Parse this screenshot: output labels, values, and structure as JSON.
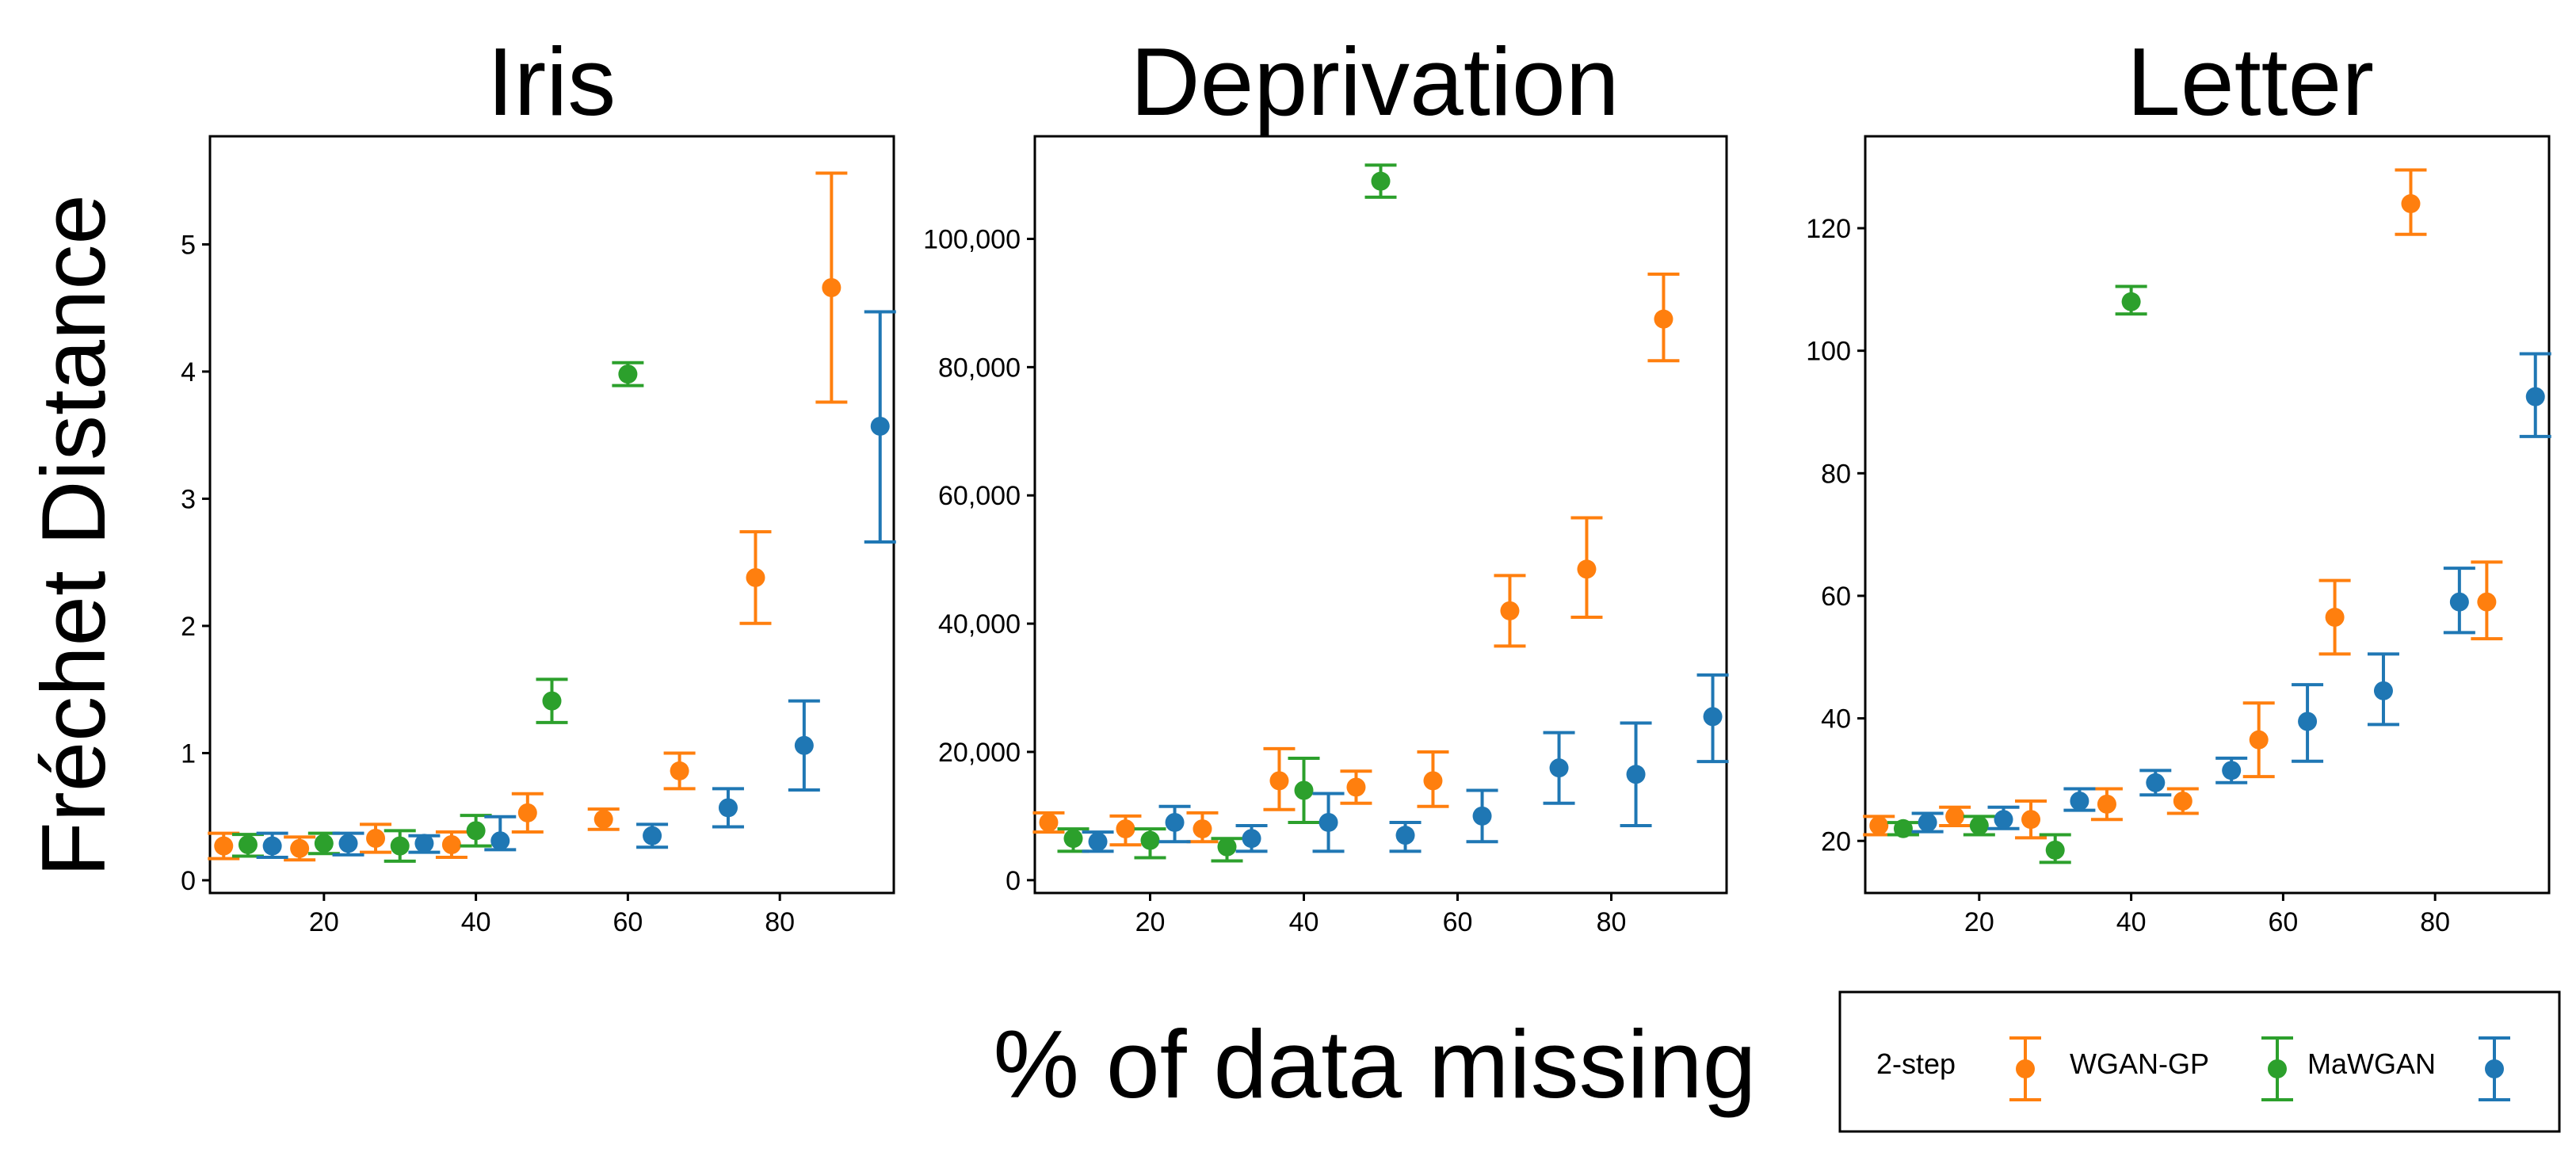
{
  "figure": {
    "ylabel": "Fréchet Distance",
    "xlabel": "% of data missing"
  },
  "legend": {
    "items": [
      {
        "label": "2-step",
        "color": "#ff7f0e"
      },
      {
        "label": "WGAN-GP",
        "color": "#2ca02c"
      },
      {
        "label": "MaWGAN",
        "color": "#1f77b4"
      }
    ]
  },
  "chart_data": [
    {
      "type": "scatter",
      "title": "Iris",
      "xlim": [
        5,
        95
      ],
      "ylim": [
        -0.1,
        5.85
      ],
      "xticks": [
        20,
        40,
        60,
        80
      ],
      "xtick_labels": [
        "20",
        "40",
        "60",
        "80"
      ],
      "yticks": [
        0,
        1,
        2,
        3,
        4,
        5
      ],
      "ytick_labels": [
        "0",
        "1",
        "2",
        "3",
        "4",
        "5"
      ],
      "grid": false,
      "series": [
        {
          "name": "2-step",
          "color": "#ff7f0e",
          "x": [
            10,
            20,
            30,
            40,
            50,
            60,
            70,
            80,
            90
          ],
          "y": [
            0.27,
            0.25,
            0.33,
            0.28,
            0.53,
            0.48,
            0.86,
            2.38,
            4.66
          ],
          "err_low": [
            0.17,
            0.16,
            0.22,
            0.18,
            0.38,
            0.4,
            0.72,
            2.02,
            3.76
          ],
          "err_high": [
            0.37,
            0.34,
            0.44,
            0.38,
            0.68,
            0.56,
            1.0,
            2.74,
            5.56
          ]
        },
        {
          "name": "WGAN-GP",
          "color": "#2ca02c",
          "x": [
            10,
            20,
            30,
            40,
            50,
            60
          ],
          "y": [
            0.28,
            0.29,
            0.27,
            0.39,
            1.41,
            3.98
          ],
          "err_low": [
            0.19,
            0.21,
            0.15,
            0.27,
            1.24,
            3.89
          ],
          "err_high": [
            0.36,
            0.37,
            0.39,
            0.51,
            1.58,
            4.07
          ]
        },
        {
          "name": "MaWGAN",
          "color": "#1f77b4",
          "x": [
            10,
            20,
            30,
            40,
            50,
            60,
            70,
            80,
            90
          ],
          "y": [
            0.27,
            0.29,
            0.29,
            0.31,
            null,
            0.35,
            0.57,
            1.06,
            3.57
          ],
          "err_low": [
            0.18,
            0.2,
            0.22,
            0.24,
            null,
            0.26,
            0.42,
            0.71,
            2.66
          ],
          "err_high": [
            0.37,
            0.37,
            0.35,
            0.5,
            null,
            0.44,
            0.72,
            1.41,
            4.47
          ]
        }
      ]
    },
    {
      "type": "scatter",
      "title": "Deprivation",
      "xlim": [
        5,
        95
      ],
      "ylim": [
        -2000,
        116000
      ],
      "xticks": [
        20,
        40,
        60,
        80
      ],
      "xtick_labels": [
        "20",
        "40",
        "60",
        "80"
      ],
      "yticks": [
        0,
        20000,
        40000,
        60000,
        80000,
        100000
      ],
      "ytick_labels": [
        "0",
        "20,000",
        "40,000",
        "60,000",
        "80,000",
        "100,000"
      ],
      "grid": false,
      "series": [
        {
          "name": "2-step",
          "color": "#ff7f0e",
          "x": [
            10,
            20,
            30,
            40,
            50,
            60,
            70,
            80,
            90
          ],
          "y": [
            9000,
            8000,
            8000,
            15500,
            14500,
            15500,
            42000,
            48500,
            87500
          ],
          "err_low": [
            7500,
            5500,
            6000,
            11000,
            12000,
            11500,
            36500,
            41000,
            81000
          ],
          "err_high": [
            10500,
            10000,
            10500,
            20500,
            17000,
            20000,
            47500,
            56500,
            94500
          ]
        },
        {
          "name": "WGAN-GP",
          "color": "#2ca02c",
          "x": [
            10,
            20,
            30,
            40,
            50
          ],
          "y": [
            6500,
            6200,
            5200,
            14000,
            109000
          ],
          "err_low": [
            4500,
            3500,
            3000,
            9000,
            106500
          ],
          "err_high": [
            8000,
            8000,
            6500,
            19000,
            111500
          ]
        },
        {
          "name": "MaWGAN",
          "color": "#1f77b4",
          "x": [
            10,
            20,
            30,
            40,
            50,
            60,
            70,
            80,
            90
          ],
          "y": [
            6000,
            9000,
            6500,
            9000,
            7000,
            10000,
            17500,
            16500,
            25500
          ],
          "err_low": [
            4500,
            6000,
            4500,
            4500,
            4500,
            6000,
            12000,
            8500,
            18500
          ],
          "err_high": [
            7500,
            11500,
            8500,
            13500,
            9000,
            14000,
            23000,
            24500,
            32000
          ]
        }
      ]
    },
    {
      "type": "scatter",
      "title": "Letter",
      "xlim": [
        5,
        95
      ],
      "ylim": [
        11.5,
        135
      ],
      "xticks": [
        20,
        40,
        60,
        80
      ],
      "xtick_labels": [
        "20",
        "40",
        "60",
        "80"
      ],
      "yticks": [
        20,
        40,
        60,
        80,
        100,
        120
      ],
      "ytick_labels": [
        "20",
        "40",
        "60",
        "80",
        "100",
        "120"
      ],
      "grid": false,
      "series": [
        {
          "name": "2-step",
          "color": "#ff7f0e",
          "x": [
            10,
            20,
            30,
            40,
            50,
            60,
            70,
            80,
            90
          ],
          "y": [
            22.5,
            24,
            23.5,
            26,
            26.5,
            36.5,
            56.5,
            124,
            59
          ],
          "err_low": [
            21,
            22.5,
            20.5,
            23.5,
            24.5,
            30.5,
            50.5,
            119,
            53
          ],
          "err_high": [
            24,
            25.5,
            26.5,
            28.5,
            28.5,
            42.5,
            62.5,
            129.5,
            65.5
          ]
        },
        {
          "name": "WGAN-GP",
          "color": "#2ca02c",
          "x": [
            10,
            20,
            30,
            40
          ],
          "y": [
            22,
            22.5,
            18.5,
            108
          ],
          "err_low": [
            21,
            21,
            16.5,
            106
          ],
          "err_high": [
            23,
            24,
            21,
            110.5
          ]
        },
        {
          "name": "MaWGAN",
          "color": "#1f77b4",
          "x": [
            10,
            20,
            30,
            40,
            50,
            60,
            70,
            80,
            90
          ],
          "y": [
            23,
            23.5,
            26.5,
            29.5,
            31.5,
            39.5,
            44.5,
            59,
            92.5
          ],
          "err_low": [
            21.5,
            22,
            25,
            27.5,
            29.5,
            33,
            39,
            54,
            86
          ],
          "err_high": [
            24.5,
            25.5,
            28.5,
            31.5,
            33.5,
            45.5,
            50.5,
            64.5,
            99.5
          ]
        }
      ]
    }
  ]
}
